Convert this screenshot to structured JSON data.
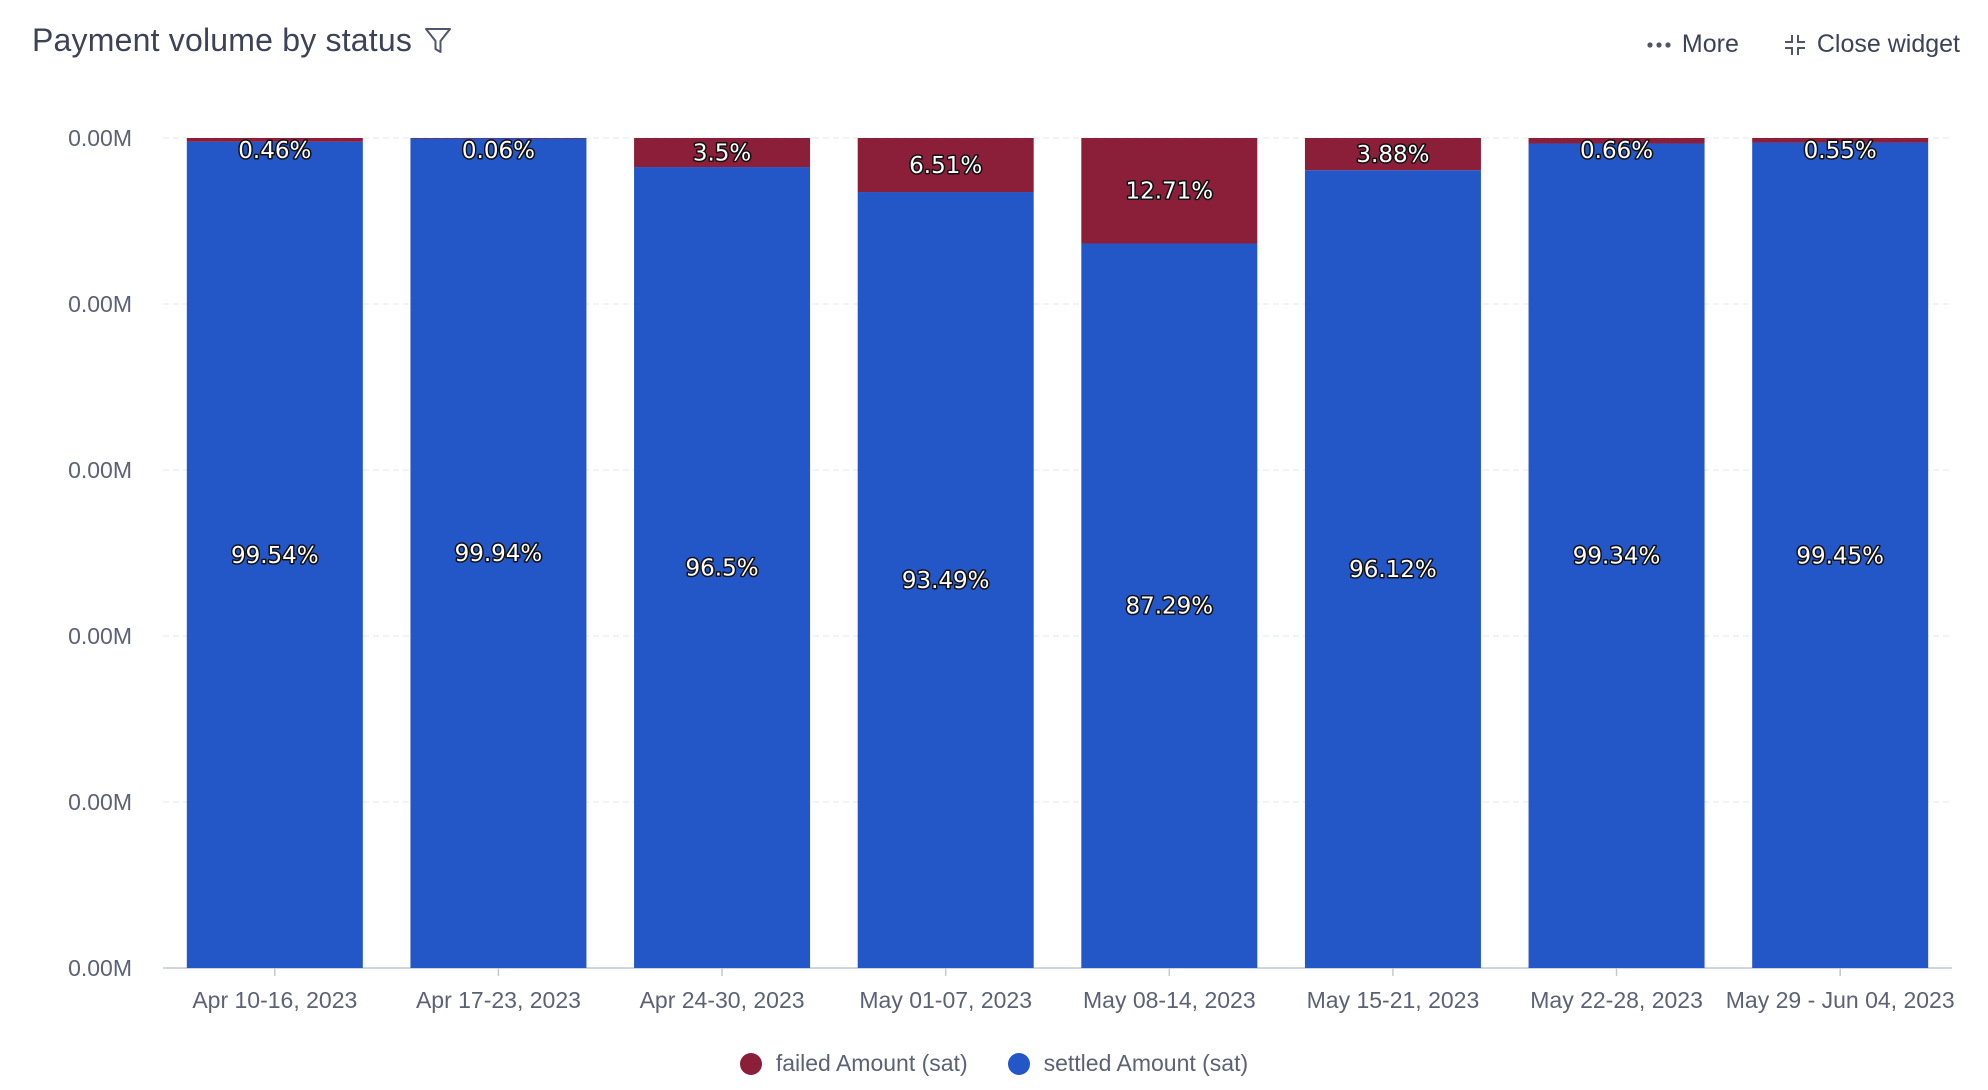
{
  "header": {
    "title": "Payment volume by status",
    "more_label": "More",
    "close_label": "Close widget"
  },
  "chart_data": {
    "type": "bar",
    "stacked": true,
    "title": "Payment volume by status",
    "xlabel": "",
    "ylabel": "",
    "y_tick_labels": [
      "0.00M",
      "0.00M",
      "0.00M",
      "0.00M",
      "0.00M",
      "0.00M"
    ],
    "ylim": [
      0,
      100
    ],
    "grid": true,
    "legend_position": "bottom-center",
    "categories": [
      "Apr 10-16, 2023",
      "Apr 17-23, 2023",
      "Apr 24-30, 2023",
      "May 01-07, 2023",
      "May 08-14, 2023",
      "May 15-21, 2023",
      "May 22-28, 2023",
      "May 29 - Jun 04, 2023"
    ],
    "series": [
      {
        "name": "settled Amount (sat)",
        "color": "#2356c7",
        "values": [
          99.54,
          99.94,
          96.5,
          93.49,
          87.29,
          96.12,
          99.34,
          99.45
        ],
        "labels": [
          "99.54%",
          "99.94%",
          "96.5%",
          "93.49%",
          "87.29%",
          "96.12%",
          "99.34%",
          "99.45%"
        ]
      },
      {
        "name": "failed Amount (sat)",
        "color": "#8b1f3a",
        "values": [
          0.46,
          0.06,
          3.5,
          6.51,
          12.71,
          3.88,
          0.66,
          0.55
        ],
        "labels": [
          "0.46%",
          "0.06%",
          "3.5%",
          "6.51%",
          "12.71%",
          "3.88%",
          "0.66%",
          "0.55%"
        ]
      }
    ],
    "legend": [
      {
        "name": "failed Amount (sat)",
        "color": "#8b1f3a"
      },
      {
        "name": "settled Amount (sat)",
        "color": "#2356c7"
      }
    ]
  }
}
